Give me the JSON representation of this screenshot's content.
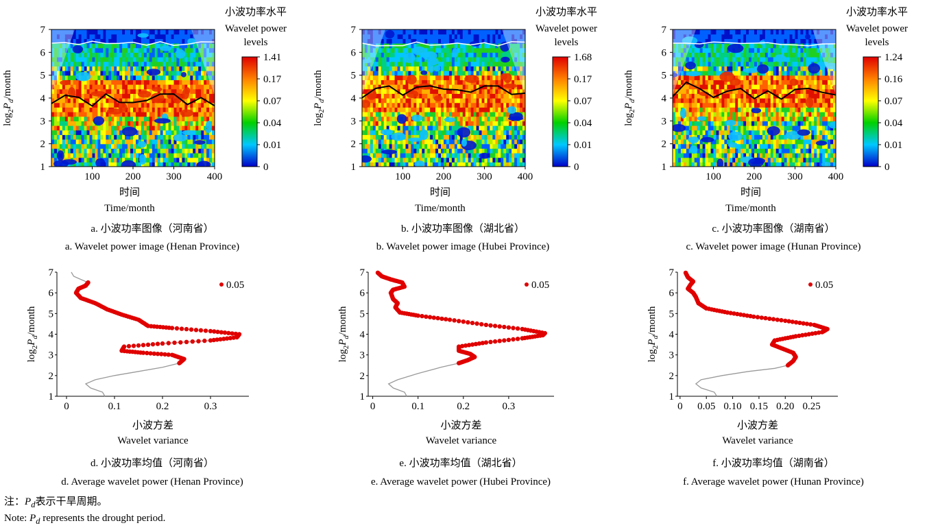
{
  "note": {
    "cn_prefix": "注：",
    "cn_text": "表示干旱周期。",
    "en_prefix": "Note: ",
    "en_text": " represents the drought period."
  },
  "chart_data": [
    {
      "type": "heatmap",
      "panel": "a",
      "caption_cn": "a. 小波功率图像（河南省）",
      "caption_en": "a. Wavelet power image (Henan Province)",
      "xlabel_cn": "时间",
      "xlabel_en": "Time/month",
      "ylabel": "log2Pd/month",
      "xlim": [
        0,
        400
      ],
      "ylim": [
        1,
        7
      ],
      "xticks": [
        100,
        200,
        300,
        400
      ],
      "yticks": [
        1,
        2,
        3,
        4,
        5,
        6,
        7
      ],
      "colorbar_title_cn": "小波功率水平",
      "colorbar_title_en": "Wavelet power levels",
      "colorbar_levels": [
        "1.41",
        "0.17",
        "0.07",
        "0.04",
        "0.01",
        "0"
      ],
      "colormap": [
        "#0000c8",
        "#00c8ff",
        "#00d000",
        "#ffff00",
        "#ff8000",
        "#e00000"
      ],
      "high_power_band_period": [
        3.3,
        4.7
      ]
    },
    {
      "type": "heatmap",
      "panel": "b",
      "caption_cn": "b. 小波功率图像（湖北省）",
      "caption_en": "b. Wavelet power image (Hubei Province)",
      "xlabel_cn": "时间",
      "xlabel_en": "Time/month",
      "ylabel": "log2Pd/month",
      "xlim": [
        0,
        400
      ],
      "ylim": [
        1,
        7
      ],
      "xticks": [
        100,
        200,
        300,
        400
      ],
      "yticks": [
        1,
        2,
        3,
        4,
        5,
        6,
        7
      ],
      "colorbar_title_cn": "小波功率水平",
      "colorbar_title_en": "Wavelet power levels",
      "colorbar_levels": [
        "1.68",
        "0.17",
        "0.07",
        "0.04",
        "0.01",
        "0"
      ],
      "colormap": [
        "#0000c8",
        "#00c8ff",
        "#00d000",
        "#ffff00",
        "#ff8000",
        "#e00000"
      ],
      "high_power_band_period": [
        3.5,
        5.0
      ]
    },
    {
      "type": "heatmap",
      "panel": "c",
      "caption_cn": "c. 小波功率图像（湖南省）",
      "caption_en": "c. Wavelet power image (Hunan Province)",
      "xlabel_cn": "时间",
      "xlabel_en": "Time/month",
      "ylabel": "log2Pd/month",
      "xlim": [
        0,
        400
      ],
      "ylim": [
        1,
        7
      ],
      "xticks": [
        100,
        200,
        300,
        400
      ],
      "yticks": [
        1,
        2,
        3,
        4,
        5,
        6,
        7
      ],
      "colorbar_title_cn": "小波功率水平",
      "colorbar_title_en": "Wavelet power levels",
      "colorbar_levels": [
        "1.24",
        "0.16",
        "0.07",
        "0.04",
        "0.01",
        "0"
      ],
      "colormap": [
        "#0000c8",
        "#00c8ff",
        "#00d000",
        "#ffff00",
        "#ff8000",
        "#e00000"
      ],
      "high_power_band_period": [
        3.6,
        5.0
      ]
    },
    {
      "type": "line",
      "panel": "d",
      "caption_cn": "d. 小波功率均值（河南省）",
      "caption_en": "d. Average wavelet power (Henan Province)",
      "xlabel_cn": "小波方差",
      "xlabel_en": "Wavelet variance",
      "ylabel": "log2Pd/month",
      "xlim": [
        -0.02,
        0.38
      ],
      "ylim": [
        1,
        7
      ],
      "xticks": [
        0,
        0.1,
        0.2,
        0.3
      ],
      "xtick_labels": [
        "0",
        "0.1",
        "0.2",
        "0.3"
      ],
      "yticks": [
        1,
        2,
        3,
        4,
        5,
        6,
        7
      ],
      "legend": "0.05",
      "significant_range": [
        2.6,
        6.5
      ],
      "series": [
        {
          "x": [
            0.08,
            0.075,
            0.05,
            0.04,
            0.06,
            0.1,
            0.15,
            0.2,
            0.235,
            0.245,
            0.22,
            0.16,
            0.115,
            0.12,
            0.2,
            0.3,
            0.355,
            0.36,
            0.3,
            0.22,
            0.17,
            0.15,
            0.115,
            0.085,
            0.06,
            0.03,
            0.02,
            0.025,
            0.04,
            0.045,
            0.03,
            0.015,
            0.01
          ],
          "y": [
            1.0,
            1.2,
            1.4,
            1.6,
            1.8,
            2.0,
            2.2,
            2.4,
            2.6,
            2.8,
            3.0,
            3.1,
            3.2,
            3.4,
            3.55,
            3.7,
            3.85,
            4.0,
            4.15,
            4.3,
            4.4,
            4.7,
            4.95,
            5.2,
            5.5,
            5.75,
            6.0,
            6.2,
            6.35,
            6.5,
            6.65,
            6.8,
            7.0
          ]
        }
      ]
    },
    {
      "type": "line",
      "panel": "e",
      "caption_cn": "e. 小波功率均值（湖北省）",
      "caption_en": "e. Average wavelet power (Hubei Province)",
      "xlabel_cn": "小波方差",
      "xlabel_en": "Wavelet variance",
      "ylabel": "log2Pd/month",
      "xlim": [
        -0.01,
        0.4
      ],
      "ylim": [
        1,
        7
      ],
      "xticks": [
        0,
        0.1,
        0.2,
        0.3
      ],
      "xtick_labels": [
        "0",
        "0.1",
        "0.2",
        "0.3"
      ],
      "yticks": [
        1,
        2,
        3,
        4,
        5,
        6,
        7
      ],
      "legend": "0.05",
      "significant_range": [
        2.6,
        7.0
      ],
      "series": [
        {
          "x": [
            0.075,
            0.07,
            0.045,
            0.035,
            0.055,
            0.1,
            0.15,
            0.19,
            0.21,
            0.225,
            0.215,
            0.19,
            0.19,
            0.25,
            0.33,
            0.375,
            0.38,
            0.33,
            0.25,
            0.17,
            0.1,
            0.06,
            0.05,
            0.055,
            0.045,
            0.04,
            0.045,
            0.07,
            0.065,
            0.04,
            0.02,
            0.01
          ],
          "y": [
            1.0,
            1.2,
            1.4,
            1.6,
            1.8,
            2.1,
            2.4,
            2.6,
            2.75,
            2.9,
            3.05,
            3.2,
            3.4,
            3.6,
            3.8,
            3.95,
            4.05,
            4.25,
            4.45,
            4.7,
            4.9,
            5.05,
            5.3,
            5.5,
            5.7,
            6.0,
            6.15,
            6.3,
            6.5,
            6.65,
            6.8,
            7.0
          ]
        }
      ]
    },
    {
      "type": "line",
      "panel": "f",
      "caption_cn": "f. 小波功率均值（湖南省）",
      "caption_en": "f. Average wavelet power (Hunan Province)",
      "xlabel_cn": "小波方差",
      "xlabel_en": "Wavelet variance",
      "ylabel": "log2Pd/month",
      "xlim": [
        -0.005,
        0.3
      ],
      "ylim": [
        1,
        7
      ],
      "xticks": [
        0,
        0.05,
        0.1,
        0.15,
        0.2,
        0.25
      ],
      "xtick_labels": [
        "0",
        "0.05",
        "0.10",
        "0.15",
        "0.20",
        "0.25"
      ],
      "yticks": [
        1,
        2,
        3,
        4,
        5,
        6,
        7
      ],
      "legend": "0.05",
      "significant_range": [
        2.5,
        7.0
      ],
      "series": [
        {
          "x": [
            0.07,
            0.065,
            0.04,
            0.03,
            0.04,
            0.08,
            0.13,
            0.18,
            0.205,
            0.215,
            0.22,
            0.215,
            0.195,
            0.175,
            0.18,
            0.22,
            0.27,
            0.28,
            0.255,
            0.2,
            0.14,
            0.09,
            0.05,
            0.035,
            0.03,
            0.025,
            0.015,
            0.02,
            0.025,
            0.015,
            0.01
          ],
          "y": [
            1.0,
            1.2,
            1.4,
            1.6,
            1.8,
            2.0,
            2.2,
            2.35,
            2.5,
            2.7,
            2.9,
            3.1,
            3.3,
            3.5,
            3.7,
            3.9,
            4.1,
            4.25,
            4.45,
            4.65,
            4.85,
            5.05,
            5.25,
            5.5,
            5.8,
            6.0,
            6.2,
            6.4,
            6.55,
            6.75,
            7.0
          ]
        }
      ]
    }
  ]
}
